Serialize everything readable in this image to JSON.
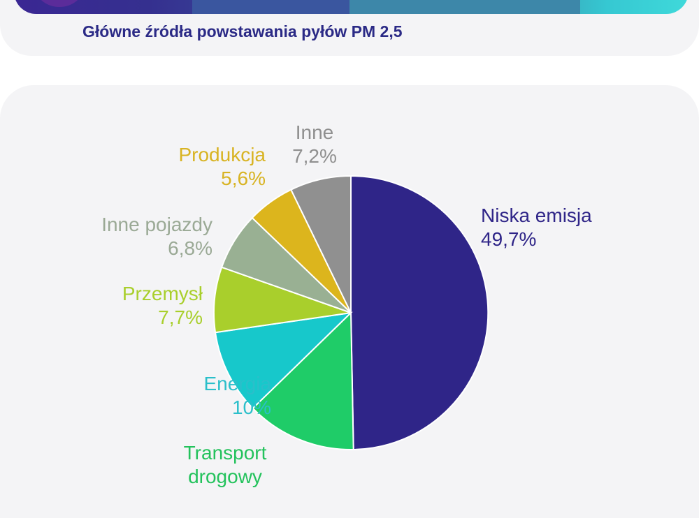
{
  "page": {
    "title": "Główne źródła powstawania pyłów PM 2,5"
  },
  "chart_data": {
    "type": "pie",
    "title": "",
    "slices": [
      {
        "name": "Niska emisja",
        "value": 49.7,
        "label": "49,7%",
        "color": "#2f2588"
      },
      {
        "name": "Transport drogowy",
        "value": 13.0,
        "label": "",
        "color": "#1fcc68"
      },
      {
        "name": "Energia",
        "value": 10.0,
        "label": "10%",
        "color": "#17c8cb"
      },
      {
        "name": "Przemysł",
        "value": 7.7,
        "label": "7,7%",
        "color": "#a9cf2c"
      },
      {
        "name": "Inne pojazdy",
        "value": 6.8,
        "label": "6,8%",
        "color": "#99b093"
      },
      {
        "name": "Produkcja",
        "value": 5.6,
        "label": "5,6%",
        "color": "#dcb51d"
      },
      {
        "name": "Inne",
        "value": 7.2,
        "label": "7,2%",
        "color": "#909090"
      }
    ],
    "label_colors": {
      "Niska emisja": "#2f2588",
      "Transport drogowy": "#23c25c",
      "Energia": "#2bbfca",
      "Przemysł": "#a9cf2c",
      "Inne pojazdy": "#9aa995",
      "Produkcja": "#d8b322",
      "Inne": "#8f8f8f"
    },
    "transport_label_lines": [
      "Transport",
      "drogowy"
    ]
  }
}
